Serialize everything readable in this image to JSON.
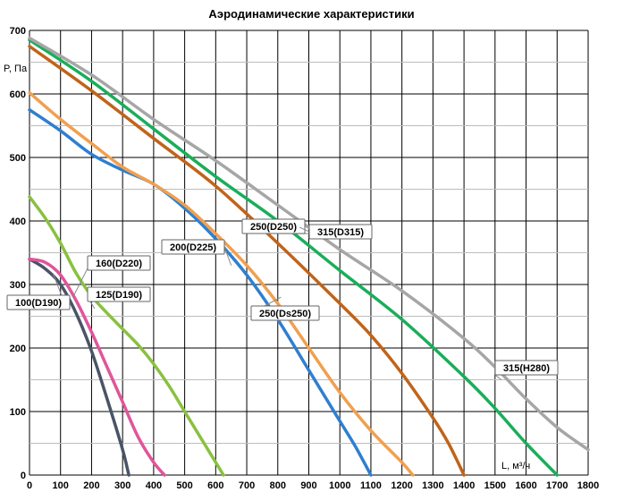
{
  "chart_data": {
    "type": "line",
    "title": "Аэродинамические характеристики",
    "ylabel": "P, Па",
    "xlabel": "L, м³/ч",
    "xlim": [
      0,
      1800
    ],
    "ylim": [
      0,
      700
    ],
    "x_ticks": [
      "0",
      "100",
      "200",
      "300",
      "400",
      "500",
      "600",
      "700",
      "800",
      "900",
      "1000",
      "1100",
      "1200",
      "1300",
      "1400",
      "1500",
      "1600",
      "1700",
      "1800"
    ],
    "y_ticks": [
      "0",
      "100",
      "200",
      "300",
      "400",
      "500",
      "600",
      "700"
    ],
    "grid": true,
    "series": [
      {
        "name": "100(D190)",
        "color": "#4a5468",
        "points": [
          [
            0,
            340
          ],
          [
            50,
            325
          ],
          [
            100,
            300
          ],
          [
            150,
            255
          ],
          [
            200,
            195
          ],
          [
            250,
            120
          ],
          [
            300,
            40
          ],
          [
            320,
            0
          ]
        ]
      },
      {
        "name": "125(D190)",
        "color": "#e0559a",
        "points": [
          [
            0,
            340
          ],
          [
            50,
            335
          ],
          [
            100,
            315
          ],
          [
            150,
            275
          ],
          [
            200,
            225
          ],
          [
            250,
            170
          ],
          [
            300,
            115
          ],
          [
            350,
            60
          ],
          [
            400,
            20
          ],
          [
            435,
            0
          ]
        ]
      },
      {
        "name": "160(D220)",
        "color": "#8ac040",
        "points": [
          [
            0,
            438
          ],
          [
            50,
            405
          ],
          [
            100,
            365
          ],
          [
            150,
            318
          ],
          [
            200,
            282
          ],
          [
            250,
            255
          ],
          [
            300,
            230
          ],
          [
            350,
            205
          ],
          [
            400,
            175
          ],
          [
            450,
            140
          ],
          [
            500,
            100
          ],
          [
            550,
            60
          ],
          [
            600,
            20
          ],
          [
            625,
            0
          ]
        ]
      },
      {
        "name": "200(D225)",
        "color": "#2f7fd0",
        "points": [
          [
            0,
            575
          ],
          [
            100,
            542
          ],
          [
            200,
            505
          ],
          [
            300,
            480
          ],
          [
            400,
            458
          ],
          [
            500,
            420
          ],
          [
            600,
            372
          ],
          [
            700,
            315
          ],
          [
            800,
            245
          ],
          [
            900,
            165
          ],
          [
            1000,
            85
          ],
          [
            1050,
            45
          ],
          [
            1100,
            0
          ]
        ]
      },
      {
        "name": "250(Ds250)",
        "color": "#f0a050",
        "points": [
          [
            0,
            602
          ],
          [
            100,
            560
          ],
          [
            200,
            522
          ],
          [
            300,
            485
          ],
          [
            400,
            458
          ],
          [
            500,
            425
          ],
          [
            600,
            380
          ],
          [
            700,
            330
          ],
          [
            800,
            270
          ],
          [
            900,
            200
          ],
          [
            1000,
            130
          ],
          [
            1100,
            70
          ],
          [
            1200,
            20
          ],
          [
            1235,
            0
          ]
        ]
      },
      {
        "name": "250(D250)",
        "color": "#c0641a",
        "points": [
          [
            0,
            675
          ],
          [
            200,
            605
          ],
          [
            400,
            530
          ],
          [
            600,
            455
          ],
          [
            800,
            365
          ],
          [
            1000,
            270
          ],
          [
            1100,
            220
          ],
          [
            1200,
            160
          ],
          [
            1300,
            90
          ],
          [
            1350,
            50
          ],
          [
            1400,
            0
          ]
        ]
      },
      {
        "name": "315(H280)",
        "color": "#1aae5a",
        "points": [
          [
            0,
            685
          ],
          [
            200,
            620
          ],
          [
            400,
            545
          ],
          [
            600,
            470
          ],
          [
            800,
            400
          ],
          [
            1000,
            322
          ],
          [
            1200,
            245
          ],
          [
            1400,
            155
          ],
          [
            1500,
            105
          ],
          [
            1600,
            50
          ],
          [
            1700,
            0
          ]
        ]
      },
      {
        "name": "315(D315)",
        "color": "#a6a6a6",
        "points": [
          [
            0,
            688
          ],
          [
            200,
            630
          ],
          [
            400,
            560
          ],
          [
            600,
            495
          ],
          [
            800,
            425
          ],
          [
            1000,
            355
          ],
          [
            1200,
            290
          ],
          [
            1400,
            215
          ],
          [
            1500,
            170
          ],
          [
            1600,
            120
          ],
          [
            1700,
            75
          ],
          [
            1800,
            40
          ]
        ]
      }
    ],
    "annotations": [
      {
        "text": "100(D190)"
      },
      {
        "text": "125(D190)"
      },
      {
        "text": "160(D220)"
      },
      {
        "text": "200(D225)"
      },
      {
        "text": "250(Ds250)"
      },
      {
        "text": "250(D250)"
      },
      {
        "text": "315(D315)"
      },
      {
        "text": "315(H280)"
      }
    ]
  }
}
